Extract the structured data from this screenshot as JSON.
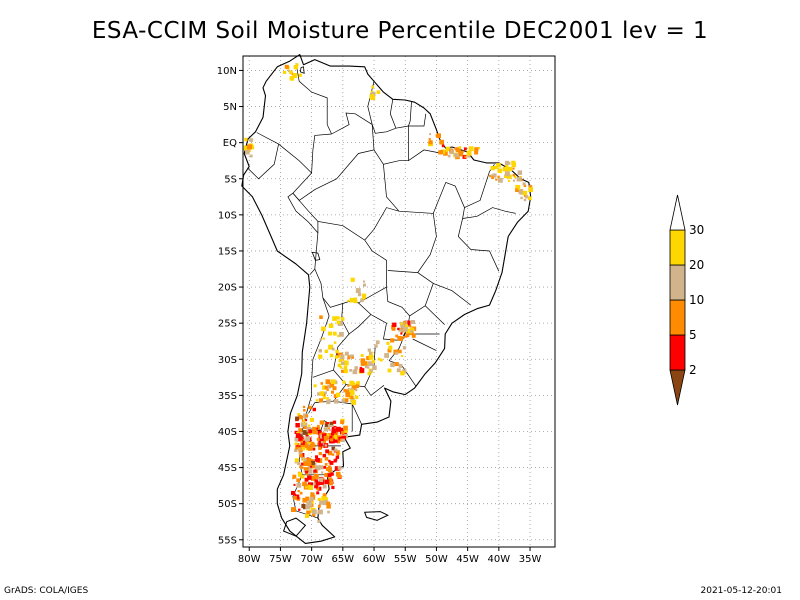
{
  "title": "ESA-CCIM Soil Moisture Percentile DEC2001 lev = 1",
  "footer": {
    "left": "GrADS: COLA/IGES",
    "right": "2021-05-12-20:01"
  },
  "map": {
    "lon_range": [
      -81,
      -31
    ],
    "lat_range": [
      -56,
      12
    ],
    "lat_ticks": [
      {
        "value": 10,
        "label": "10N"
      },
      {
        "value": 5,
        "label": "5N"
      },
      {
        "value": 0,
        "label": "EQ"
      },
      {
        "value": -5,
        "label": "5S"
      },
      {
        "value": -10,
        "label": "10S"
      },
      {
        "value": -15,
        "label": "15S"
      },
      {
        "value": -20,
        "label": "20S"
      },
      {
        "value": -25,
        "label": "25S"
      },
      {
        "value": -30,
        "label": "30S"
      },
      {
        "value": -35,
        "label": "35S"
      },
      {
        "value": -40,
        "label": "40S"
      },
      {
        "value": -45,
        "label": "45S"
      },
      {
        "value": -50,
        "label": "50S"
      },
      {
        "value": -55,
        "label": "55S"
      }
    ],
    "lon_ticks": [
      {
        "value": -80,
        "label": "80W"
      },
      {
        "value": -75,
        "label": "75W"
      },
      {
        "value": -70,
        "label": "70W"
      },
      {
        "value": -65,
        "label": "65W"
      },
      {
        "value": -60,
        "label": "60W"
      },
      {
        "value": -55,
        "label": "55W"
      },
      {
        "value": -50,
        "label": "50W"
      },
      {
        "value": -45,
        "label": "45W"
      },
      {
        "value": -40,
        "label": "40W"
      },
      {
        "value": -35,
        "label": "35W"
      }
    ],
    "grid": true
  },
  "colorbar": {
    "segments": [
      {
        "color": "#8B4513"
      },
      {
        "color": "#FF0000"
      },
      {
        "color": "#FF8C00"
      },
      {
        "color": "#D2B48C"
      },
      {
        "color": "#FFD700"
      },
      {
        "color": "#FFFFFF"
      }
    ],
    "labels": [
      "2",
      "5",
      "10",
      "20",
      "30"
    ]
  }
}
